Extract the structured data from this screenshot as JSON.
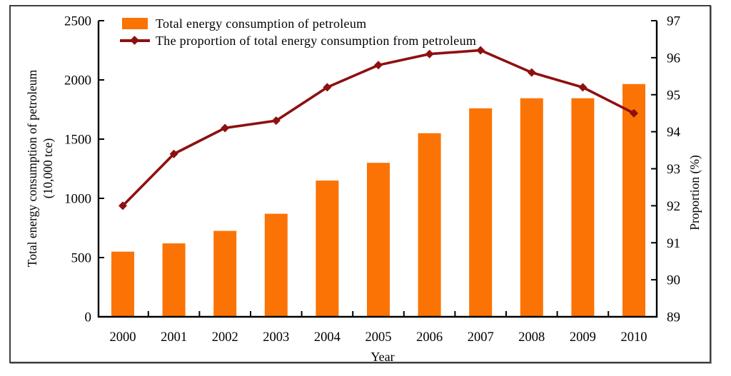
{
  "figure": {
    "frame_color": "#3e3e3e",
    "background": "#ffffff",
    "axis_color": "#000000"
  },
  "chart_data": {
    "type": "combo-bar-line",
    "title": "",
    "categories": [
      "2000",
      "2001",
      "2002",
      "2003",
      "2004",
      "2005",
      "2006",
      "2007",
      "2008",
      "2009",
      "2010"
    ],
    "series": [
      {
        "name": "Total energy consumption of petroleum",
        "type": "bar",
        "axis": "left",
        "color": "#FB7304",
        "values": [
          550,
          620,
          725,
          870,
          1150,
          1300,
          1550,
          1760,
          1845,
          1845,
          1965
        ]
      },
      {
        "name": "The proportion of total energy consumption from petroleum",
        "type": "line",
        "axis": "right",
        "marker": "diamond",
        "color": "#8E100F",
        "values": [
          92.0,
          93.4,
          94.1,
          94.3,
          95.2,
          95.8,
          96.1,
          96.2,
          95.6,
          95.2,
          94.5
        ]
      }
    ],
    "x_axis": {
      "label": "Year"
    },
    "left_axis": {
      "label": "Total energy consumption of petroleum",
      "label_unit": "(10,000 tce)",
      "min": 0,
      "max": 2500,
      "ticks": [
        0,
        500,
        1000,
        1500,
        2000,
        2500
      ]
    },
    "right_axis": {
      "label": "Proportion (%)",
      "min": 89,
      "max": 97,
      "ticks": [
        89,
        90,
        91,
        92,
        93,
        94,
        95,
        96,
        97
      ]
    },
    "legend_position": "top-left-inside",
    "grid": false
  }
}
